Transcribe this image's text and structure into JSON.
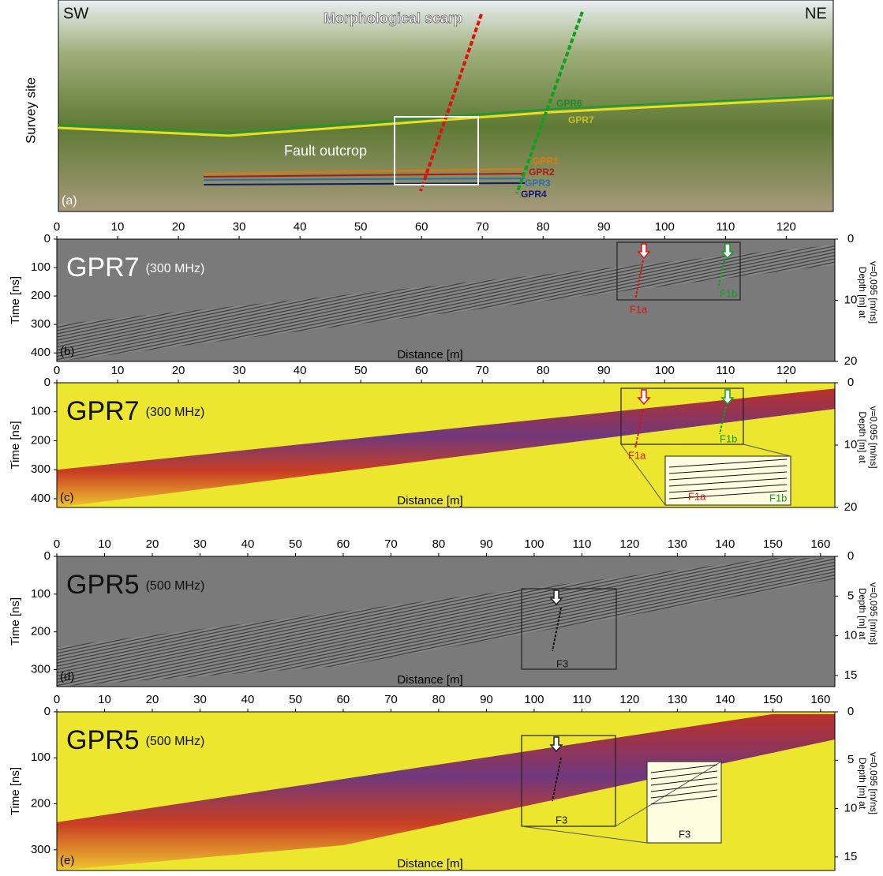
{
  "photo": {
    "label": "(a)",
    "side_label": "Survey site",
    "sw": "SW",
    "ne": "NE",
    "scarp": "Morphological scarp",
    "outcrop": "Fault outcrop",
    "profiles": [
      "GPR6",
      "GPR7",
      "GPR1",
      "GPR2",
      "GPR3",
      "GPR4"
    ]
  },
  "panels": [
    {
      "label": "(b)",
      "title": "GPR7",
      "frequency": "(300 MHz)",
      "style": "gray",
      "x_label": "Distance [m]",
      "y_label": "Time [ns]",
      "depth_label": [
        "Depth [m] at",
        "v=0,095 [m/ns]"
      ],
      "xlim": [
        0,
        128
      ],
      "xticks": [
        0,
        10,
        20,
        30,
        40,
        50,
        60,
        70,
        80,
        90,
        100,
        110,
        120
      ],
      "ylim": [
        0,
        430
      ],
      "yticks": [
        0,
        100,
        200,
        300,
        400
      ],
      "depth_lim": [
        0,
        20
      ],
      "depth_ticks": [
        0,
        10,
        20
      ],
      "annotations": [
        "F1a",
        "F1b"
      ]
    },
    {
      "label": "(c)",
      "title": "GPR7",
      "frequency": "(300 MHz)",
      "style": "yellow",
      "x_label": "Distance [m]",
      "y_label": "Time [ns]",
      "depth_label": [
        "Depth [m] at",
        "v=0,095 [m/ns]"
      ],
      "xlim": [
        0,
        128
      ],
      "xticks": [
        0,
        10,
        20,
        30,
        40,
        50,
        60,
        70,
        80,
        90,
        100,
        110,
        120
      ],
      "ylim": [
        0,
        430
      ],
      "yticks": [
        0,
        100,
        200,
        300,
        400
      ],
      "depth_lim": [
        0,
        20
      ],
      "depth_ticks": [
        0,
        10,
        20
      ],
      "annotations": [
        "F1a",
        "F1b",
        "F1a",
        "F1b"
      ]
    },
    {
      "label": "(d)",
      "title": "GPR5",
      "frequency": "(500 MHz)",
      "style": "gray",
      "x_label": "Distance [m]",
      "y_label": "Time [ns]",
      "depth_label": [
        "Depth [m] at",
        "v=0,095 [m/ns]"
      ],
      "xlim": [
        0,
        163
      ],
      "xticks": [
        0,
        10,
        20,
        30,
        40,
        50,
        60,
        70,
        80,
        90,
        100,
        110,
        120,
        130,
        140,
        150,
        160
      ],
      "ylim": [
        0,
        345
      ],
      "yticks": [
        0,
        100,
        200,
        300
      ],
      "depth_lim": [
        0,
        16.4
      ],
      "depth_ticks": [
        0,
        5,
        10,
        15
      ],
      "annotations": [
        "F3"
      ]
    },
    {
      "label": "(e)",
      "title": "GPR5",
      "frequency": "(500 MHz)",
      "style": "yellow",
      "x_label": "Distance [m]",
      "y_label": "Time [ns]",
      "depth_label": [
        "Depth [m] at",
        "v=0,095 [m/ns]"
      ],
      "xlim": [
        0,
        163
      ],
      "xticks": [
        0,
        10,
        20,
        30,
        40,
        50,
        60,
        70,
        80,
        90,
        100,
        110,
        120,
        130,
        140,
        150,
        160
      ],
      "ylim": [
        0,
        345
      ],
      "yticks": [
        0,
        100,
        200,
        300
      ],
      "depth_lim": [
        0,
        16.4
      ],
      "depth_ticks": [
        0,
        5,
        10,
        15
      ],
      "annotations": [
        "F3",
        "F3"
      ]
    }
  ]
}
